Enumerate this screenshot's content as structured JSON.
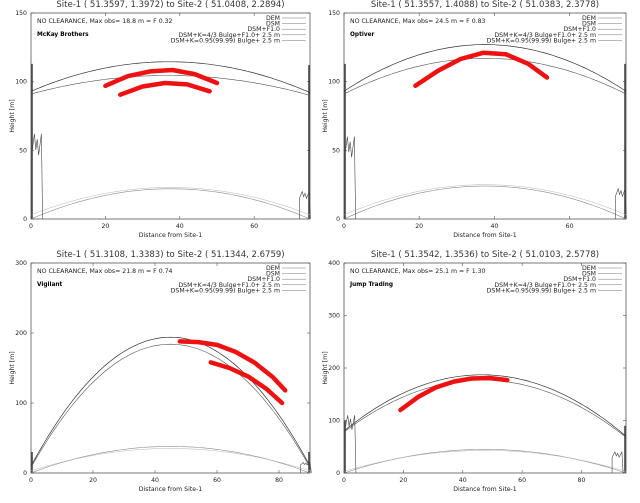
{
  "chart_data": [
    {
      "type": "line",
      "title": "Site-1 ( 51.3597,    1.3972) to Site-2 ( 51.0408,    2.2894)",
      "clearance_text": "NO CLEARANCE, Max obs= 18.8 m = F 0.32",
      "company": "McKay Brothers",
      "xlabel": "Distance from Site-1",
      "ylabel": "Height [m]",
      "xlim": [
        0,
        75
      ],
      "ylim": [
        0,
        150
      ],
      "xticks": [
        0,
        20,
        40,
        60
      ],
      "yticks": [
        0,
        50,
        100,
        150
      ],
      "grid": false,
      "legend": [
        "DEM",
        "DSM",
        "DSM+F1.0",
        "DSM+K=4/3 Bulge+F1.0+ 2.5 m",
        "DSM+K=0.95(99.99) Bulge+ 2.5 m"
      ],
      "legend_position": "top-right",
      "path_length": 75,
      "antenna_heights": [
        93,
        92
      ],
      "bulge_peaks": [
        22,
        20
      ],
      "red_arcs": [
        {
          "x": [
            20,
            26,
            32,
            38,
            44,
            50
          ],
          "y": [
            97,
            104,
            107.5,
            108.5,
            105.5,
            99
          ]
        },
        {
          "x": [
            24,
            30,
            36,
            42,
            48
          ],
          "y": [
            90.5,
            96.5,
            99,
            98,
            93
          ]
        }
      ],
      "clutter": [
        {
          "x": 1.5,
          "height": 62
        },
        {
          "x": 73.5,
          "height": 20
        }
      ]
    },
    {
      "type": "line",
      "title": "Site-1 ( 51.3557,    1.4088) to Site-2 ( 51.0383,    2.3778)",
      "clearance_text": "NO CLEARANCE, Max obs= 24.5 m = F 0.83",
      "company": "Optiver",
      "xlabel": "Distance from Site-1",
      "ylabel": "Height [m]",
      "xlim": [
        0,
        75
      ],
      "ylim": [
        0,
        150
      ],
      "xticks": [
        0,
        20,
        40,
        60
      ],
      "yticks": [
        0,
        50,
        100,
        150
      ],
      "grid": false,
      "legend": [
        "DEM",
        "DSM",
        "DSM+F1.0",
        "DSM+K=4/3 Bulge+F1.0+ 2.5 m",
        "DSM+K=0.95(99.99) Bulge+ 2.5 m"
      ],
      "legend_position": "top-right",
      "path_length": 75,
      "antenna_heights": [
        93,
        93
      ],
      "bulge_peaks": [
        24,
        22
      ],
      "red_arcs": [
        {
          "x": [
            19,
            25,
            31,
            37,
            43,
            49,
            54
          ],
          "y": [
            97,
            108,
            116.5,
            121,
            120,
            113,
            103
          ]
        }
      ],
      "clutter": [
        {
          "x": 1.5,
          "height": 60
        },
        {
          "x": 73.5,
          "height": 22
        }
      ]
    },
    {
      "type": "line",
      "title": "Site-1 ( 51.3108,    1.3383) to Site-2 ( 51.1344,    2.6759)",
      "clearance_text": "NO CLEARANCE, Max obs= 21.8 m = F 0.74",
      "company": "Vigilant",
      "xlabel": "Distance from Site-1",
      "ylabel": "Height [m]",
      "xlim": [
        0,
        90
      ],
      "ylim": [
        0,
        300
      ],
      "xticks": [
        0,
        20,
        40,
        60,
        80
      ],
      "yticks": [
        0,
        100,
        200,
        300
      ],
      "grid": false,
      "legend": [
        "DEM",
        "DSM",
        "DSM+F1.0",
        "DSM+K=4/3 Bulge+F1.0+ 2.5 m",
        "DSM+K=0.95(99.99) Bulge+ 2.5 m"
      ],
      "legend_position": "top-right",
      "path_length": 90,
      "antenna_heights": [
        10,
        10
      ],
      "bulge_peaks": [
        38,
        32
      ],
      "red_arcs": [
        {
          "x": [
            48,
            54,
            60,
            66,
            72,
            78,
            82
          ],
          "y": [
            188,
            187,
            183,
            173,
            158,
            137,
            118
          ]
        },
        {
          "x": [
            58,
            64,
            70,
            76,
            81
          ],
          "y": [
            158,
            150,
            138,
            120,
            100
          ]
        }
      ],
      "clutter": [
        {
          "x": 88.5,
          "height": 15
        }
      ]
    },
    {
      "type": "line",
      "title": "Site-1 ( 51.3542,    1.3536) to Site-2 ( 51.0103,    2.5778)",
      "clearance_text": "NO CLEARANCE, Max obs= 25.1 m = F 1.30",
      "company": "Jump Trading",
      "xlabel": "Distance from Site-1",
      "ylabel": "Height [m]",
      "xlim": [
        0,
        95
      ],
      "ylim": [
        0,
        400
      ],
      "xticks": [
        0,
        20,
        40,
        60,
        80
      ],
      "yticks": [
        0,
        100,
        200,
        300,
        400
      ],
      "grid": false,
      "legend": [
        "DEM",
        "DSM",
        "DSM+F1.0",
        "DSM+K=4/3 Bulge+F1.0+ 2.5 m",
        "DSM+K=0.95(99.99) Bulge+ 2.5 m"
      ],
      "legend_position": "top-right",
      "path_length": 95,
      "antenna_heights": [
        80,
        70
      ],
      "bulge_peaks": [
        45,
        40
      ],
      "red_arcs": [
        {
          "x": [
            19,
            25,
            31,
            37,
            43,
            49,
            55
          ],
          "y": [
            120,
            145,
            163,
            174,
            180,
            181,
            177
          ]
        }
      ],
      "clutter": [
        {
          "x": 2,
          "height": 110
        },
        {
          "x": 92,
          "height": 40
        }
      ]
    }
  ]
}
